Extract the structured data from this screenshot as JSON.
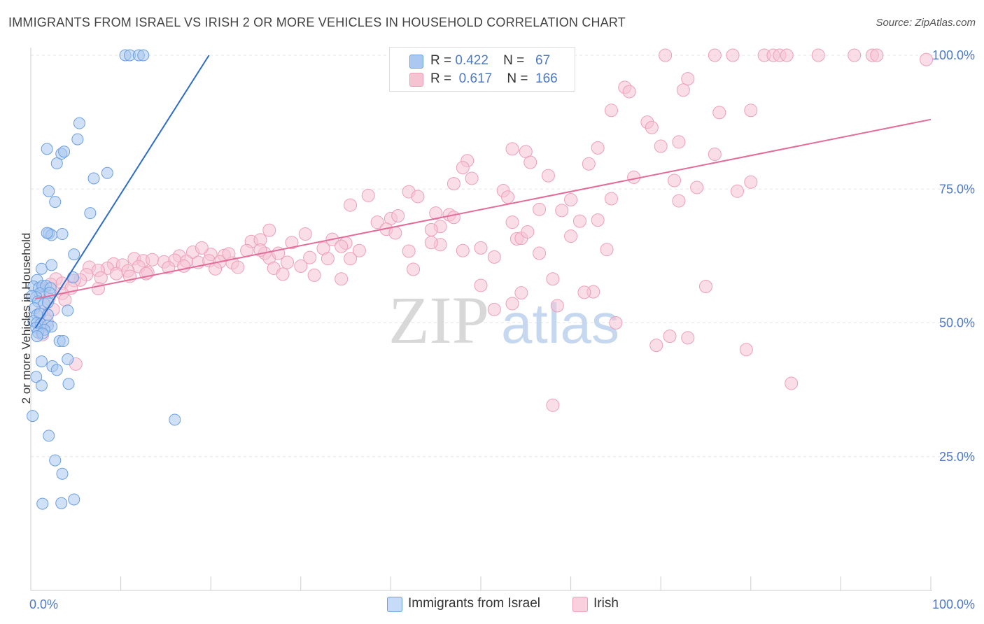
{
  "header": {
    "title": "IMMIGRANTS FROM ISRAEL VS IRISH 2 OR MORE VEHICLES IN HOUSEHOLD CORRELATION CHART",
    "source": "Source: ZipAtlas.com"
  },
  "watermark": {
    "zip": "ZIP",
    "atlas": "atlas"
  },
  "legend_top": {
    "rows": [
      {
        "r_label": "R =",
        "r_value": "0.422",
        "n_label": "N =",
        "n_value": "67"
      },
      {
        "r_label": "R =",
        "r_value": "0.617",
        "n_label": "N =",
        "n_value": "166"
      }
    ]
  },
  "legend_bottom": {
    "items": [
      {
        "label": "Immigrants from Israel"
      },
      {
        "label": "Irish"
      }
    ]
  },
  "colors": {
    "israel_fill": "#aac8f0",
    "israel_stroke": "#6a9fe0",
    "israel_line": "#2d6cc9",
    "irish_fill": "#f6c3d3",
    "irish_stroke": "#ee9fb8",
    "irish_line": "#e56b98",
    "tick_label": "#4d79c7",
    "grid": "#e5e5e5"
  },
  "chart_data": {
    "type": "scatter",
    "title": "IMMIGRANTS FROM ISRAEL VS IRISH 2 OR MORE VEHICLES IN HOUSEHOLD CORRELATION CHART",
    "xlabel": "",
    "ylabel": "2 or more Vehicles in Household",
    "xlim": [
      0,
      100
    ],
    "ylim": [
      0,
      102
    ],
    "x_tick_labels": [
      "0.0%",
      "100.0%"
    ],
    "y_tick_labels": [
      "25.0%",
      "50.0%",
      "75.0%",
      "100.0%"
    ],
    "y_ticks": [
      25,
      50,
      75,
      100
    ],
    "grid": true,
    "legend_position": "top-center",
    "series": [
      {
        "name": "Immigrants from Israel",
        "R": 0.422,
        "N": 67,
        "trend": {
          "x0": 0.5,
          "y0": 49.0,
          "x1": 19.8,
          "y1": 100.0
        },
        "points": [
          [
            10.5,
            100
          ],
          [
            11.0,
            100
          ],
          [
            12.0,
            100
          ],
          [
            12.5,
            100
          ],
          [
            5.4,
            87.3
          ],
          [
            5.2,
            84.3
          ],
          [
            1.8,
            82.5
          ],
          [
            3.4,
            81.6
          ],
          [
            3.7,
            82
          ],
          [
            2.9,
            79.8
          ],
          [
            8.5,
            78
          ],
          [
            7.0,
            77
          ],
          [
            2.0,
            74.6
          ],
          [
            2.7,
            72.6
          ],
          [
            6.6,
            70.5
          ],
          [
            2.0,
            66.7
          ],
          [
            2.3,
            66.4
          ],
          [
            3.5,
            66.6
          ],
          [
            1.8,
            66.8
          ],
          [
            4.8,
            62.8
          ],
          [
            1.2,
            60.1
          ],
          [
            2.3,
            60.8
          ],
          [
            4.7,
            58.5
          ],
          [
            0.7,
            58.0
          ],
          [
            0.3,
            56.8
          ],
          [
            0.9,
            56.5
          ],
          [
            1.3,
            56.9
          ],
          [
            1.7,
            56.9
          ],
          [
            2.2,
            56.5
          ],
          [
            1.0,
            55.5
          ],
          [
            2.1,
            55.6
          ],
          [
            0.6,
            54.8
          ],
          [
            0.1,
            55.0
          ],
          [
            0.8,
            54.0
          ],
          [
            1.5,
            53.6
          ],
          [
            1.9,
            53.8
          ],
          [
            0.4,
            52.7
          ],
          [
            4.1,
            52.3
          ],
          [
            0.7,
            51.5
          ],
          [
            1.0,
            51.7
          ],
          [
            1.9,
            51.5
          ],
          [
            0.3,
            50.3
          ],
          [
            0.7,
            50.0
          ],
          [
            1.1,
            49.8
          ],
          [
            1.9,
            49.5
          ],
          [
            2.3,
            49.3
          ],
          [
            0.6,
            49.1
          ],
          [
            1.5,
            48.7
          ],
          [
            0.8,
            48.2
          ],
          [
            1.3,
            48.0
          ],
          [
            0.7,
            47.5
          ],
          [
            3.2,
            46.6
          ],
          [
            3.6,
            46.6
          ],
          [
            4.1,
            43.2
          ],
          [
            1.2,
            42.8
          ],
          [
            2.4,
            41.9
          ],
          [
            2.9,
            41.2
          ],
          [
            0.6,
            39.9
          ],
          [
            1.2,
            38.3
          ],
          [
            4.2,
            38.6
          ],
          [
            0.2,
            32.6
          ],
          [
            16.0,
            31.9
          ],
          [
            2.0,
            28.9
          ],
          [
            2.7,
            24.3
          ],
          [
            3.5,
            21.8
          ],
          [
            1.3,
            16.2
          ],
          [
            3.4,
            16.3
          ],
          [
            4.8,
            17.0
          ]
        ]
      },
      {
        "name": "Irish",
        "R": 0.617,
        "N": 166,
        "trend": {
          "x0": 0.5,
          "y0": 54.5,
          "x1": 100.0,
          "y1": 88.0
        },
        "points": [
          [
            70.5,
            100
          ],
          [
            76.0,
            100
          ],
          [
            78.0,
            100
          ],
          [
            81.5,
            100
          ],
          [
            82.5,
            100
          ],
          [
            83.2,
            100
          ],
          [
            84.0,
            100
          ],
          [
            87.5,
            100
          ],
          [
            91.5,
            100
          ],
          [
            93.5,
            100
          ],
          [
            94.0,
            100
          ],
          [
            99.5,
            99.2
          ],
          [
            73.0,
            95.6
          ],
          [
            66.0,
            94.0
          ],
          [
            66.5,
            93.2
          ],
          [
            72.5,
            93.5
          ],
          [
            64.5,
            89.7
          ],
          [
            76.5,
            89.3
          ],
          [
            80.0,
            89.7
          ],
          [
            68.5,
            87.5
          ],
          [
            69.0,
            86.5
          ],
          [
            72.0,
            83.8
          ],
          [
            70.0,
            83.0
          ],
          [
            63.0,
            82.7
          ],
          [
            53.5,
            82.5
          ],
          [
            55.0,
            82.0
          ],
          [
            76.0,
            81.5
          ],
          [
            55.5,
            80.0
          ],
          [
            48.5,
            80.3
          ],
          [
            62.0,
            79.7
          ],
          [
            48.0,
            79.0
          ],
          [
            57.5,
            77.5
          ],
          [
            49.0,
            77.0
          ],
          [
            67.0,
            77.2
          ],
          [
            47.0,
            76.0
          ],
          [
            80.0,
            76.3
          ],
          [
            71.5,
            76.6
          ],
          [
            74.0,
            75.3
          ],
          [
            78.5,
            74.6
          ],
          [
            42.0,
            74.5
          ],
          [
            52.5,
            74.7
          ],
          [
            37.5,
            73.8
          ],
          [
            43.0,
            73.6
          ],
          [
            53.0,
            73.5
          ],
          [
            72.0,
            72.8
          ],
          [
            35.5,
            72.0
          ],
          [
            59.0,
            71.0
          ],
          [
            56.5,
            71.2
          ],
          [
            45.0,
            70.5
          ],
          [
            46.5,
            70.2
          ],
          [
            40.0,
            69.5
          ],
          [
            63.0,
            69.2
          ],
          [
            38.5,
            68.8
          ],
          [
            61.0,
            69.0
          ],
          [
            53.5,
            68.8
          ],
          [
            45.5,
            68.0
          ],
          [
            39.5,
            67.5
          ],
          [
            44.5,
            67.4
          ],
          [
            26.5,
            67.3
          ],
          [
            40.5,
            66.8
          ],
          [
            30.5,
            66.6
          ],
          [
            54.0,
            65.7
          ],
          [
            33.5,
            65.6
          ],
          [
            54.5,
            65.8
          ],
          [
            60.0,
            66.2
          ],
          [
            24.5,
            65.2
          ],
          [
            25.5,
            65.5
          ],
          [
            29.0,
            65.0
          ],
          [
            35.0,
            64.9
          ],
          [
            45.5,
            64.6
          ],
          [
            64.0,
            63.7
          ],
          [
            34.5,
            64.3
          ],
          [
            50.0,
            64.0
          ],
          [
            32.5,
            63.9
          ],
          [
            48.0,
            63.5
          ],
          [
            24.0,
            63.5
          ],
          [
            42.0,
            63.4
          ],
          [
            36.5,
            63.5
          ],
          [
            56.5,
            63.0
          ],
          [
            26.0,
            63.0
          ],
          [
            18.0,
            63.2
          ],
          [
            20.0,
            62.8
          ],
          [
            21.5,
            62.6
          ],
          [
            26.5,
            62.1
          ],
          [
            31.0,
            62.2
          ],
          [
            35.5,
            62.0
          ],
          [
            51.5,
            62.3
          ],
          [
            16.5,
            62.5
          ],
          [
            11.5,
            62.0
          ],
          [
            12.5,
            61.6
          ],
          [
            13.5,
            61.8
          ],
          [
            14.8,
            61.4
          ],
          [
            16.0,
            61.7
          ],
          [
            17.3,
            61.5
          ],
          [
            18.6,
            61.3
          ],
          [
            19.8,
            61.6
          ],
          [
            21.0,
            61.4
          ],
          [
            22.4,
            61.2
          ],
          [
            9.2,
            61.0
          ],
          [
            10.2,
            60.8
          ],
          [
            12.0,
            60.5
          ],
          [
            15.3,
            60.3
          ],
          [
            17.0,
            60.6
          ],
          [
            20.5,
            60.1
          ],
          [
            23.0,
            60.4
          ],
          [
            27.0,
            60.2
          ],
          [
            28.5,
            61.3
          ],
          [
            30.0,
            60.6
          ],
          [
            8.5,
            60.2
          ],
          [
            6.5,
            60.4
          ],
          [
            7.5,
            59.8
          ],
          [
            9.5,
            59.2
          ],
          [
            10.8,
            59.7
          ],
          [
            13.0,
            59.4
          ],
          [
            11.0,
            58.7
          ],
          [
            12.8,
            59.2
          ],
          [
            6.2,
            59.0
          ],
          [
            7.8,
            58.4
          ],
          [
            5.5,
            58.0
          ],
          [
            4.8,
            57.9
          ],
          [
            2.8,
            58.2
          ],
          [
            3.5,
            57.4
          ],
          [
            2.2,
            57.2
          ],
          [
            4.5,
            56.5
          ],
          [
            7.5,
            56.4
          ],
          [
            1.5,
            56.3
          ],
          [
            3.5,
            55.5
          ],
          [
            2.0,
            54.5
          ],
          [
            3.8,
            54.3
          ],
          [
            2.5,
            52.5
          ],
          [
            1.2,
            52.1
          ],
          [
            1.8,
            50.3
          ],
          [
            1.0,
            49.0
          ],
          [
            1.3,
            47.8
          ],
          [
            5.0,
            42.3
          ],
          [
            34.5,
            58.2
          ],
          [
            31.5,
            58.9
          ],
          [
            28.0,
            59.1
          ],
          [
            42.5,
            60.0
          ],
          [
            50.0,
            57.0
          ],
          [
            58.0,
            58.2
          ],
          [
            62.5,
            55.8
          ],
          [
            61.5,
            55.7
          ],
          [
            75.0,
            56.8
          ],
          [
            58.5,
            53.2
          ],
          [
            53.5,
            53.6
          ],
          [
            51.5,
            52.5
          ],
          [
            54.5,
            55.6
          ],
          [
            65.0,
            50.0
          ],
          [
            69.5,
            45.8
          ],
          [
            71.0,
            47.5
          ],
          [
            73.0,
            47.2
          ],
          [
            79.5,
            45.0
          ],
          [
            84.5,
            38.7
          ],
          [
            58.0,
            34.6
          ],
          [
            60.0,
            73.0
          ],
          [
            64.5,
            73.2
          ],
          [
            44.5,
            65.0
          ],
          [
            47.0,
            69.7
          ],
          [
            55.2,
            67.0
          ],
          [
            40.8,
            70.0
          ],
          [
            33.0,
            62.0
          ],
          [
            27.5,
            63.0
          ],
          [
            22.0,
            62.9
          ],
          [
            19.0,
            64.0
          ],
          [
            25.5,
            63.6
          ]
        ]
      }
    ]
  }
}
